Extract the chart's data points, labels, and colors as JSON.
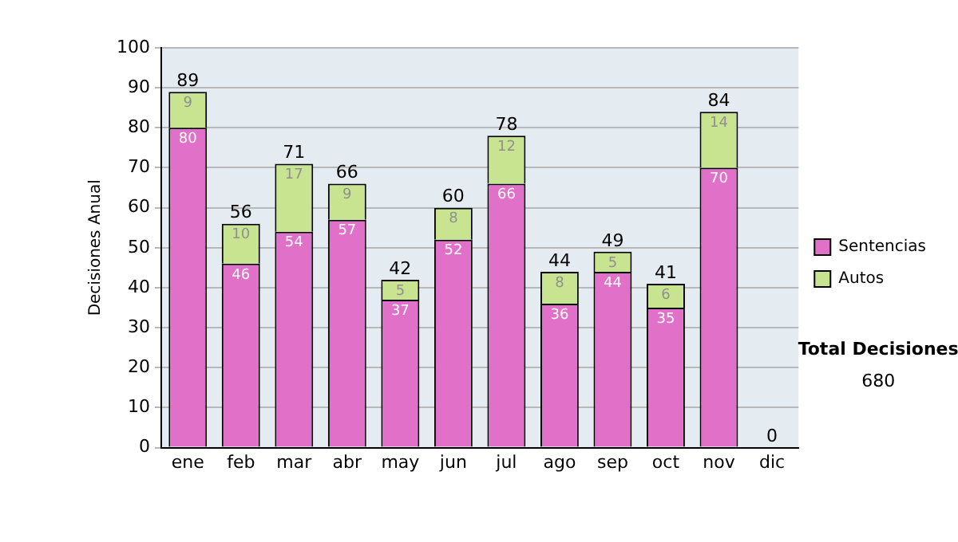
{
  "chart_data": {
    "type": "bar",
    "stacked": true,
    "ylabel": "Decisiones Anual",
    "categories": [
      "ene",
      "feb",
      "mar",
      "abr",
      "may",
      "jun",
      "jul",
      "ago",
      "sep",
      "oct",
      "nov",
      "dic"
    ],
    "series": [
      {
        "name": "Sentencias",
        "color": "#e070c8",
        "values": [
          80,
          46,
          54,
          57,
          37,
          52,
          66,
          36,
          44,
          35,
          70,
          0
        ],
        "value_labels": [
          "80",
          "46",
          "54",
          "57",
          "37",
          "52",
          "66",
          "36",
          "44",
          "35",
          "70",
          null
        ]
      },
      {
        "name": "Autos",
        "color": "#c8e490",
        "values": [
          9,
          10,
          17,
          9,
          5,
          8,
          12,
          8,
          5,
          6,
          14,
          0
        ],
        "value_labels": [
          "9",
          "10",
          "17",
          "9",
          "5",
          "8",
          "12",
          "8",
          "5",
          "6",
          "14",
          null
        ]
      }
    ],
    "totals": [
      "89",
      "56",
      "71",
      "66",
      "42",
      "60",
      "78",
      "44",
      "49",
      "41",
      "84",
      "0"
    ],
    "ylim": [
      0,
      100
    ],
    "yticks": [
      0,
      10,
      20,
      30,
      40,
      50,
      60,
      70,
      80,
      90,
      100
    ],
    "grid": "y",
    "legend": "right",
    "annotations": [
      "Total Decisiones",
      "680"
    ]
  }
}
